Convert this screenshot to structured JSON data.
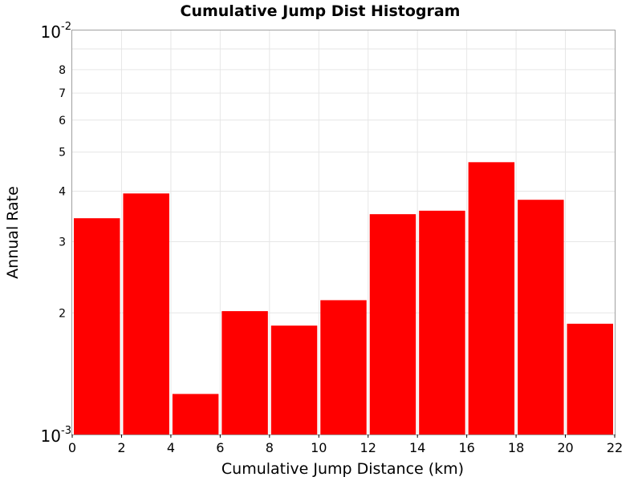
{
  "chart_data": {
    "type": "bar",
    "title": "Cumulative Jump Dist Histogram",
    "xlabel": "Cumulative Jump Distance (km)",
    "ylabel": "Annual Rate",
    "xlim": [
      0,
      22
    ],
    "ylim": [
      0.001,
      0.01
    ],
    "y_scale": "log",
    "grid": true,
    "bar_color": "#ff0000",
    "bin_width": 2,
    "x": [
      1,
      3,
      5,
      7,
      9,
      11,
      13,
      15,
      17,
      19,
      21
    ],
    "values": [
      0.00343,
      0.00395,
      0.00126,
      0.00202,
      0.00186,
      0.00215,
      0.00351,
      0.00358,
      0.00472,
      0.00381,
      0.00188
    ],
    "x_ticks": [
      "0",
      "2",
      "4",
      "6",
      "8",
      "10",
      "12",
      "14",
      "16",
      "18",
      "20",
      "22"
    ],
    "y_decade_ticks": [
      {
        "value": 0.001,
        "base": "10",
        "exp": "-3"
      },
      {
        "value": 0.01,
        "base": "10",
        "exp": "-2"
      }
    ],
    "y_minor_ticks": [
      {
        "value": 0.002,
        "label": "2"
      },
      {
        "value": 0.003,
        "label": "3"
      },
      {
        "value": 0.004,
        "label": "4"
      },
      {
        "value": 0.005,
        "label": "5"
      },
      {
        "value": 0.006,
        "label": "6"
      },
      {
        "value": 0.007,
        "label": "7"
      },
      {
        "value": 0.008,
        "label": "8"
      },
      {
        "value": 0.009,
        "label": ""
      }
    ]
  }
}
